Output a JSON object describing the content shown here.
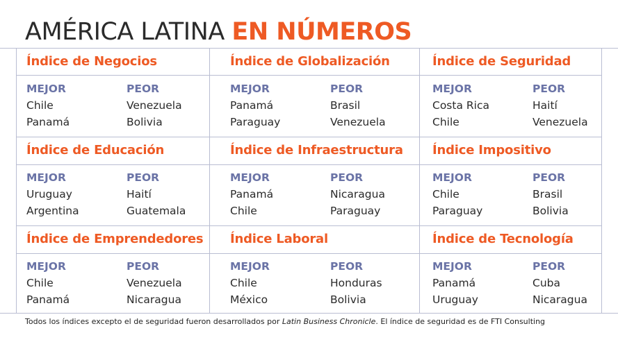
{
  "title": {
    "part1": "AMÉRICA LATINA",
    "part2": "EN NÚMEROS"
  },
  "labels": {
    "best": "MEJOR",
    "worst": "PEOR"
  },
  "cells": [
    {
      "title": "Índice de Negocios",
      "best": [
        "Chile",
        "Panamá"
      ],
      "worst": [
        "Venezuela",
        "Bolivia"
      ]
    },
    {
      "title": "Índice de Globalización",
      "best": [
        "Panamá",
        "Paraguay"
      ],
      "worst": [
        "Brasil",
        "Venezuela"
      ]
    },
    {
      "title": "Índice de Seguridad",
      "best": [
        "Costa Rica",
        "Chile"
      ],
      "worst": [
        "Haití",
        "Venezuela"
      ]
    },
    {
      "title": "Índice de Educación",
      "best": [
        "Uruguay",
        "Argentina"
      ],
      "worst": [
        "Haití",
        "Guatemala"
      ]
    },
    {
      "title": "Índice de Infraestructura",
      "best": [
        "Panamá",
        "Chile"
      ],
      "worst": [
        "Nicaragua",
        "Paraguay"
      ]
    },
    {
      "title": "Índice Impositivo",
      "best": [
        "Chile",
        "Paraguay"
      ],
      "worst": [
        "Brasil",
        "Bolivia"
      ]
    },
    {
      "title": "Índice de Emprendedores",
      "best": [
        "Chile",
        "Panamá"
      ],
      "worst": [
        "Venezuela",
        "Nicaragua"
      ]
    },
    {
      "title": "Índice Laboral",
      "best": [
        "Chile",
        "México"
      ],
      "worst": [
        "Honduras",
        "Bolivia"
      ]
    },
    {
      "title": "Índice de Tecnología",
      "best": [
        "Panamá",
        "Uruguay"
      ],
      "worst": [
        "Cuba",
        "Nicaragua"
      ]
    }
  ],
  "footer": {
    "prefix": "Todos los índices excepto el de seguridad fueron desarrollados por ",
    "source": "Latin Business Chronicle",
    "suffix": ".  El índice de seguridad es de  FTI Consulting"
  }
}
